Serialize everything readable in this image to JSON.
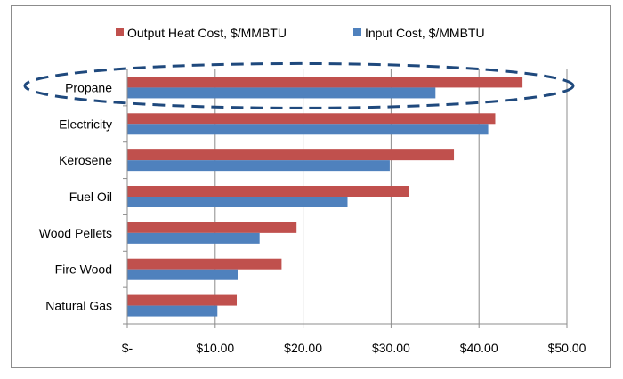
{
  "chart_data": {
    "type": "bar",
    "orientation": "horizontal",
    "categories": [
      "Natural Gas",
      "Fire Wood",
      "Wood Pellets",
      "Fuel Oil",
      "Kerosene",
      "Electricity",
      "Propane"
    ],
    "series": [
      {
        "name": "Output Heat Cost, $/MMBTU",
        "color": "#c0504d",
        "values": [
          12.4,
          17.5,
          19.2,
          32.0,
          37.1,
          41.8,
          44.9
        ]
      },
      {
        "name": "Input Cost, $/MMBTU",
        "color": "#4f81bd",
        "values": [
          10.2,
          12.5,
          15.0,
          25.0,
          29.8,
          41.0,
          35.0
        ]
      }
    ],
    "x_ticks": [
      "$-",
      "$10.00",
      "$20.00",
      "$30.00",
      "$40.00",
      "$50.00"
    ],
    "xlim": [
      0,
      50
    ],
    "x_gridlines": true,
    "legend_position": "top",
    "highlight": {
      "category": "Propane",
      "shape": "dashed ellipse",
      "color": "#1f497d"
    }
  }
}
